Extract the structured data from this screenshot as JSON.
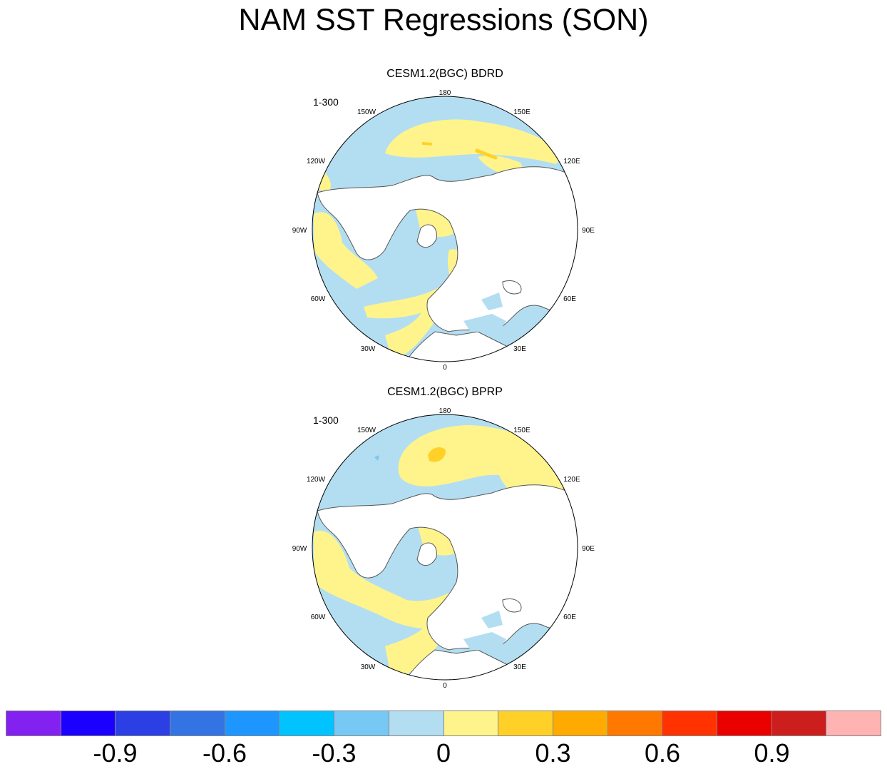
{
  "title": "NAM SST Regressions (SON)",
  "panels": [
    {
      "title": "CESM1.2(BGC) BDRD",
      "range": "1-300"
    },
    {
      "title": "CESM1.2(BGC) BPRP",
      "range": "1-300"
    }
  ],
  "lon_labels": {
    "lon_180": "180",
    "lon_150e": "150E",
    "lon_120e": "120E",
    "lon_90e": "90E",
    "lon_60e": "60E",
    "lon_30e": "30E",
    "lon_0": "0",
    "lon_30w": "30W",
    "lon_60w": "60W",
    "lon_90w": "90W",
    "lon_120w": "120W",
    "lon_150w": "150W"
  },
  "colorbar": {
    "colors": [
      "#8221f0",
      "#1c00ff",
      "#2b3fe5",
      "#3473e4",
      "#1e96ff",
      "#00c3ff",
      "#78c8f5",
      "#b3def2",
      "#fff48c",
      "#ffd128",
      "#ffaa00",
      "#ff7800",
      "#ff3200",
      "#eb0000",
      "#cd1e1e",
      "#ffb3b3"
    ],
    "labels": [
      "-0.9",
      "-0.6",
      "-0.3",
      "0",
      "0.3",
      "0.6",
      "0.9"
    ]
  },
  "map_colors": {
    "ocean_negative": "#b3def2",
    "ocean_positive": "#fff48c",
    "strong_positive": "#ffd128",
    "land": "#ffffff",
    "coast": "#555555"
  }
}
